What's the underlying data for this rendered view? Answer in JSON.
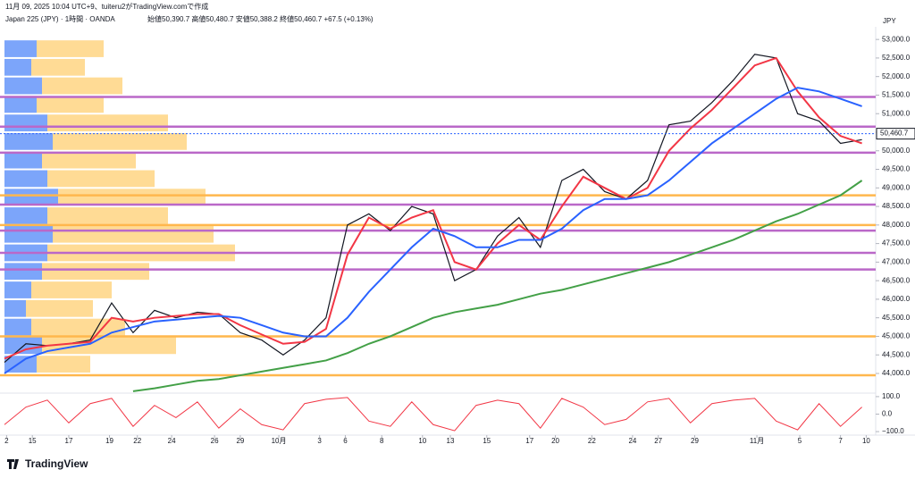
{
  "chart_data": {
    "type": "line",
    "header": "11月 09, 2025 10:04 UTC+9、tuiteru2がTradingView.comで作成",
    "title": "Japan 225 (JPY) · 1時間 · OANDA",
    "ohlc": "始値50,390.7 高値50,480.7 安値50,388.2 終値50,460.7 +67.5 (+0.13%)",
    "currency": "JPY",
    "brand": "TradingView",
    "xlim": [
      0,
      40.6
    ],
    "xticks": [
      {
        "value": 0.1,
        "label": "2"
      },
      {
        "value": 1.3,
        "label": "15"
      },
      {
        "value": 3,
        "label": "17"
      },
      {
        "value": 4.9,
        "label": "19"
      },
      {
        "value": 6.2,
        "label": "22"
      },
      {
        "value": 7.8,
        "label": "24"
      },
      {
        "value": 9.8,
        "label": "26"
      },
      {
        "value": 11,
        "label": "29"
      },
      {
        "value": 12.8,
        "label": "10月"
      },
      {
        "value": 14.7,
        "label": "3"
      },
      {
        "value": 15.9,
        "label": "6"
      },
      {
        "value": 17.6,
        "label": "8"
      },
      {
        "value": 19.5,
        "label": "10"
      },
      {
        "value": 20.8,
        "label": "13"
      },
      {
        "value": 22.5,
        "label": "15"
      },
      {
        "value": 24.5,
        "label": "17"
      },
      {
        "value": 25.7,
        "label": "20"
      },
      {
        "value": 27.4,
        "label": "22"
      },
      {
        "value": 29.3,
        "label": "24"
      },
      {
        "value": 30.5,
        "label": "27"
      },
      {
        "value": 32.2,
        "label": "29"
      },
      {
        "value": 35.1,
        "label": "11月"
      },
      {
        "value": 37.1,
        "label": "5"
      },
      {
        "value": 39,
        "label": "7"
      },
      {
        "value": 40.2,
        "label": "10"
      }
    ],
    "ylim": [
      43470,
      53100
    ],
    "yticks": [
      {
        "value": 44000,
        "label": "44,000.0"
      },
      {
        "value": 44500,
        "label": "44,500.0"
      },
      {
        "value": 45000,
        "label": "45,000.0"
      },
      {
        "value": 45500,
        "label": "45,500.0"
      },
      {
        "value": 46000,
        "label": "46,000.0"
      },
      {
        "value": 46500,
        "label": "46,500.0"
      },
      {
        "value": 47000,
        "label": "47,000.0"
      },
      {
        "value": 47500,
        "label": "47,500.0"
      },
      {
        "value": 48000,
        "label": "48,000.0"
      },
      {
        "value": 48500,
        "label": "48,500.0"
      },
      {
        "value": 49000,
        "label": "49,000.0"
      },
      {
        "value": 49500,
        "label": "49,500.0"
      },
      {
        "value": 50000,
        "label": "50,000.0"
      },
      {
        "value": 50500,
        "label": "50,500.0"
      },
      {
        "value": 51000,
        "label": "51,000.0"
      },
      {
        "value": 51500,
        "label": "51,500.0"
      },
      {
        "value": 52000,
        "label": "52,000.0"
      },
      {
        "value": 52500,
        "label": "52,500.0"
      },
      {
        "value": 53000,
        "label": "53,000.0"
      }
    ],
    "last_price": {
      "value": 50460.7,
      "label": "50,460.7"
    },
    "series": [
      {
        "name": "price",
        "color": "#131722",
        "values": [
          44300,
          44800,
          44750,
          44800,
          44900,
          45900,
          45100,
          45700,
          45500,
          45650,
          45600,
          45100,
          44900,
          44500,
          44900,
          45500,
          48000,
          48300,
          47850,
          48500,
          48300,
          46500,
          46800,
          47700,
          48200,
          47400,
          49200,
          49500,
          48900,
          48700,
          49200,
          50700,
          50800,
          51300,
          51900,
          52600,
          52500,
          51000,
          50800,
          50200,
          50300
        ]
      },
      {
        "name": "fast",
        "color": "#f23645",
        "values": [
          44400,
          44650,
          44750,
          44800,
          44850,
          45500,
          45400,
          45500,
          45550,
          45600,
          45600,
          45300,
          45050,
          44800,
          44850,
          45200,
          47200,
          48200,
          47900,
          48200,
          48400,
          47000,
          46800,
          47500,
          48000,
          47600,
          48500,
          49300,
          49000,
          48700,
          49000,
          50000,
          50600,
          51100,
          51700,
          52300,
          52500,
          51600,
          50900,
          50400,
          50200
        ]
      },
      {
        "name": "slow",
        "color": "#2962ff",
        "values": [
          44000,
          44400,
          44600,
          44700,
          44800,
          45100,
          45250,
          45400,
          45450,
          45500,
          45550,
          45500,
          45300,
          45100,
          45000,
          45000,
          45500,
          46200,
          46800,
          47400,
          47900,
          47700,
          47400,
          47400,
          47600,
          47600,
          47900,
          48400,
          48700,
          48700,
          48800,
          49200,
          49700,
          50200,
          50600,
          51000,
          51400,
          51700,
          51600,
          51400,
          51200
        ]
      },
      {
        "name": "long",
        "color": "#43a047",
        "values": [
          null,
          null,
          null,
          null,
          null,
          null,
          43520,
          43600,
          43700,
          43800,
          43850,
          43950,
          44050,
          44150,
          44250,
          44350,
          44550,
          44800,
          45000,
          45250,
          45500,
          45650,
          45750,
          45850,
          46000,
          46150,
          46250,
          46400,
          46550,
          46700,
          46850,
          47000,
          47200,
          47400,
          47600,
          47850,
          48100,
          48300,
          48550,
          48800,
          49200
        ]
      }
    ],
    "levels": [
      {
        "value": 51450,
        "color": "#ba68c8"
      },
      {
        "value": 50650,
        "color": "#ba68c8"
      },
      {
        "value": 49950,
        "color": "#ba68c8"
      },
      {
        "value": 48550,
        "color": "#ba68c8"
      },
      {
        "value": 47850,
        "color": "#ba68c8"
      },
      {
        "value": 47250,
        "color": "#ba68c8"
      },
      {
        "value": 46800,
        "color": "#ba68c8"
      },
      {
        "value": 48800,
        "color": "#ffb74d"
      },
      {
        "value": 48000,
        "color": "#ffb74d"
      },
      {
        "value": 45000,
        "color": "#ffb74d"
      },
      {
        "value": 43950,
        "color": "#ffb74d"
      }
    ],
    "volume_profile": {
      "xlim": [
        0,
        100
      ],
      "prices": [
        52750,
        52250,
        51750,
        51250,
        50750,
        50250,
        49750,
        49250,
        48750,
        48250,
        47750,
        47250,
        46750,
        46250,
        45750,
        45250,
        44750,
        44250
      ],
      "down": [
        12,
        10,
        14,
        12,
        16,
        18,
        14,
        16,
        20,
        16,
        18,
        16,
        14,
        10,
        8,
        10,
        14,
        12
      ],
      "up": [
        25,
        20,
        30,
        25,
        45,
        50,
        35,
        40,
        55,
        45,
        60,
        70,
        40,
        30,
        25,
        35,
        50,
        20
      ],
      "down_color": "#5b8ff9",
      "up_color": "#ffd27a"
    },
    "oscillator": {
      "ylim": [
        -120,
        120
      ],
      "yticks": [
        {
          "value": 100,
          "label": "100.0"
        },
        {
          "value": 0,
          "label": "0.0"
        },
        {
          "value": -100,
          "label": "−100.0"
        }
      ],
      "color": "#f23645",
      "values": [
        -60,
        40,
        80,
        -50,
        60,
        90,
        -70,
        50,
        -20,
        70,
        -80,
        30,
        -60,
        -90,
        60,
        85,
        95,
        -40,
        -70,
        70,
        -60,
        -95,
        50,
        80,
        60,
        -80,
        90,
        40,
        -60,
        -30,
        70,
        90,
        -50,
        60,
        80,
        90,
        -40,
        -90,
        60,
        -70,
        40
      ]
    }
  }
}
